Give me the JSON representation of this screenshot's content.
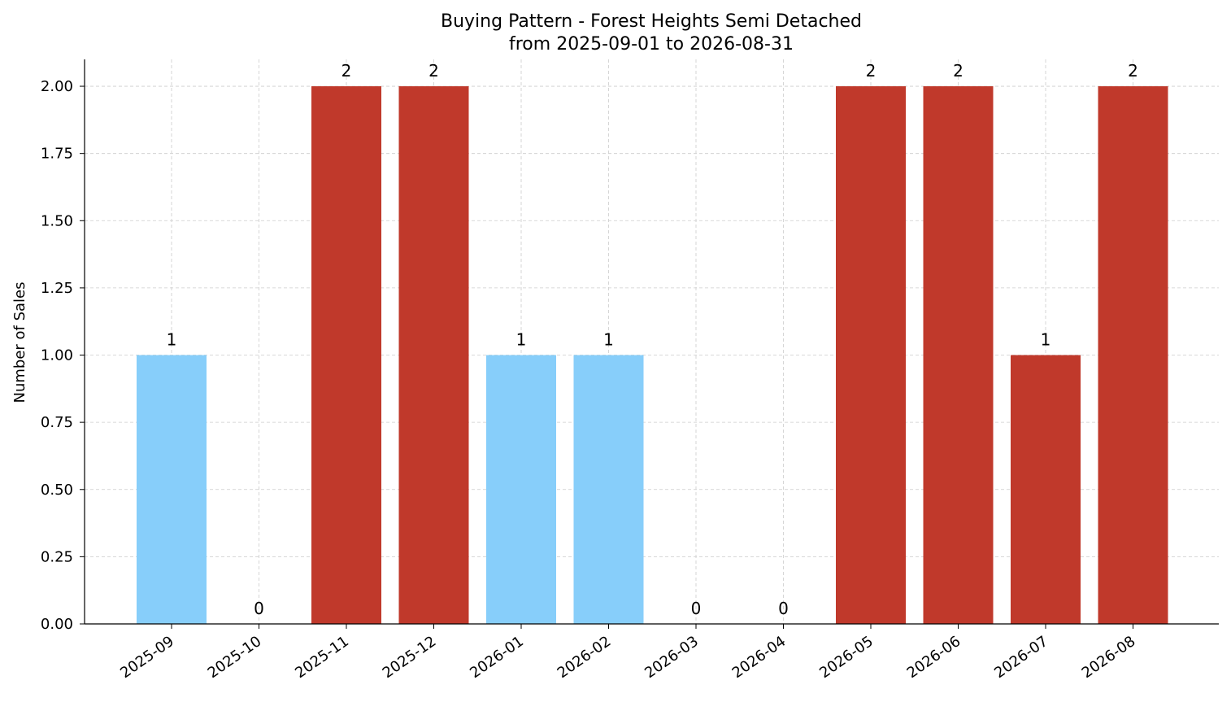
{
  "chart_data": {
    "type": "bar",
    "title": "Buying Pattern - Forest Heights Semi Detached",
    "subtitle": "from 2025-09-01 to 2026-08-31",
    "xlabel": "",
    "ylabel": "Number of Sales",
    "categories": [
      "2025-09",
      "2025-10",
      "2025-11",
      "2025-12",
      "2026-01",
      "2026-02",
      "2026-03",
      "2026-04",
      "2026-05",
      "2026-06",
      "2026-07",
      "2026-08"
    ],
    "values": [
      1,
      0,
      2,
      2,
      1,
      1,
      0,
      0,
      2,
      2,
      1,
      2
    ],
    "bar_colors": [
      "#87CEFA",
      "#87CEFA",
      "#C0392B",
      "#C0392B",
      "#87CEFA",
      "#87CEFA",
      "#87CEFA",
      "#87CEFA",
      "#C0392B",
      "#C0392B",
      "#C0392B",
      "#C0392B"
    ],
    "data_labels": [
      "1",
      "0",
      "2",
      "2",
      "1",
      "1",
      "0",
      "0",
      "2",
      "2",
      "1",
      "2"
    ],
    "yticks": [
      "0.00",
      "0.25",
      "0.50",
      "0.75",
      "1.00",
      "1.25",
      "1.50",
      "1.75",
      "2.00"
    ],
    "ylim": [
      0,
      2.1
    ],
    "grid": true,
    "legend": "none"
  }
}
